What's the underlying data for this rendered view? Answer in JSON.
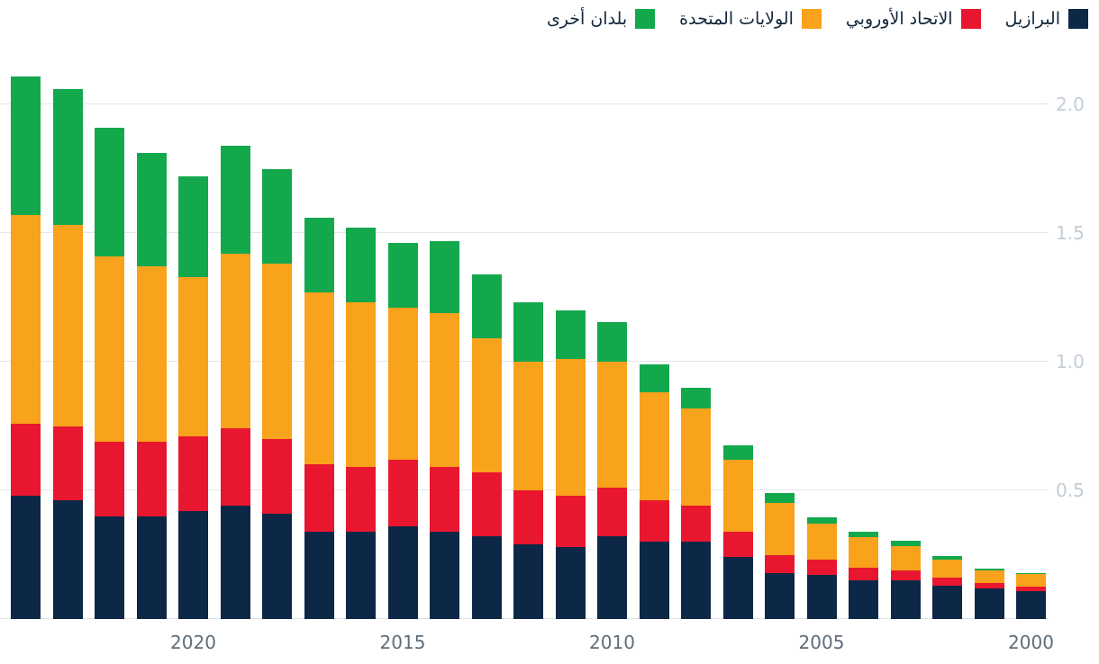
{
  "colors": {
    "background": "#ffffff",
    "gridline": "#e2e6ea",
    "y_tick_text": "#c3cdd5",
    "x_tick_text": "#5e6d7a",
    "legend_text": "#12263c"
  },
  "chart_data": {
    "type": "bar",
    "stacked": true,
    "x_axis_reversed": true,
    "grid": "horizontal",
    "legend_position": "top-right",
    "x": [
      2024,
      2023,
      2022,
      2021,
      2020,
      2019,
      2018,
      2017,
      2016,
      2015,
      2014,
      2013,
      2012,
      2011,
      2010,
      2009,
      2008,
      2007,
      2006,
      2005,
      2004,
      2003,
      2002,
      2001,
      2000
    ],
    "x_ticks": [
      "2020",
      "2015",
      "2010",
      "2005",
      "2000"
    ],
    "y_ticks": [
      "2.0",
      "1.5",
      "1.0",
      "0.5"
    ],
    "ylim": [
      0,
      2.2
    ],
    "series": [
      {
        "name": "البرازيل",
        "color": "#0d2847",
        "values": [
          0.48,
          0.46,
          0.4,
          0.4,
          0.42,
          0.44,
          0.41,
          0.34,
          0.34,
          0.36,
          0.34,
          0.32,
          0.29,
          0.28,
          0.32,
          0.3,
          0.3,
          0.24,
          0.18,
          0.17,
          0.15,
          0.15,
          0.13,
          0.12,
          0.11
        ]
      },
      {
        "name": "الاتحاد الأوروبي",
        "color": "#e8172f",
        "values": [
          0.28,
          0.29,
          0.29,
          0.29,
          0.29,
          0.3,
          0.29,
          0.26,
          0.25,
          0.26,
          0.25,
          0.25,
          0.21,
          0.2,
          0.19,
          0.16,
          0.14,
          0.1,
          0.07,
          0.06,
          0.05,
          0.04,
          0.03,
          0.02,
          0.015
        ]
      },
      {
        "name": "الولايات المتحدة",
        "color": "#f9a21b",
        "values": [
          0.81,
          0.78,
          0.72,
          0.68,
          0.62,
          0.68,
          0.68,
          0.67,
          0.64,
          0.59,
          0.6,
          0.52,
          0.5,
          0.53,
          0.49,
          0.42,
          0.38,
          0.28,
          0.2,
          0.14,
          0.12,
          0.095,
          0.07,
          0.05,
          0.05
        ]
      },
      {
        "name": "بلدان أخرى",
        "color": "#14a84d",
        "values": [
          0.54,
          0.53,
          0.5,
          0.44,
          0.39,
          0.42,
          0.37,
          0.29,
          0.29,
          0.25,
          0.28,
          0.25,
          0.23,
          0.19,
          0.155,
          0.11,
          0.08,
          0.055,
          0.04,
          0.025,
          0.02,
          0.02,
          0.015,
          0.005,
          0.005
        ]
      }
    ]
  }
}
